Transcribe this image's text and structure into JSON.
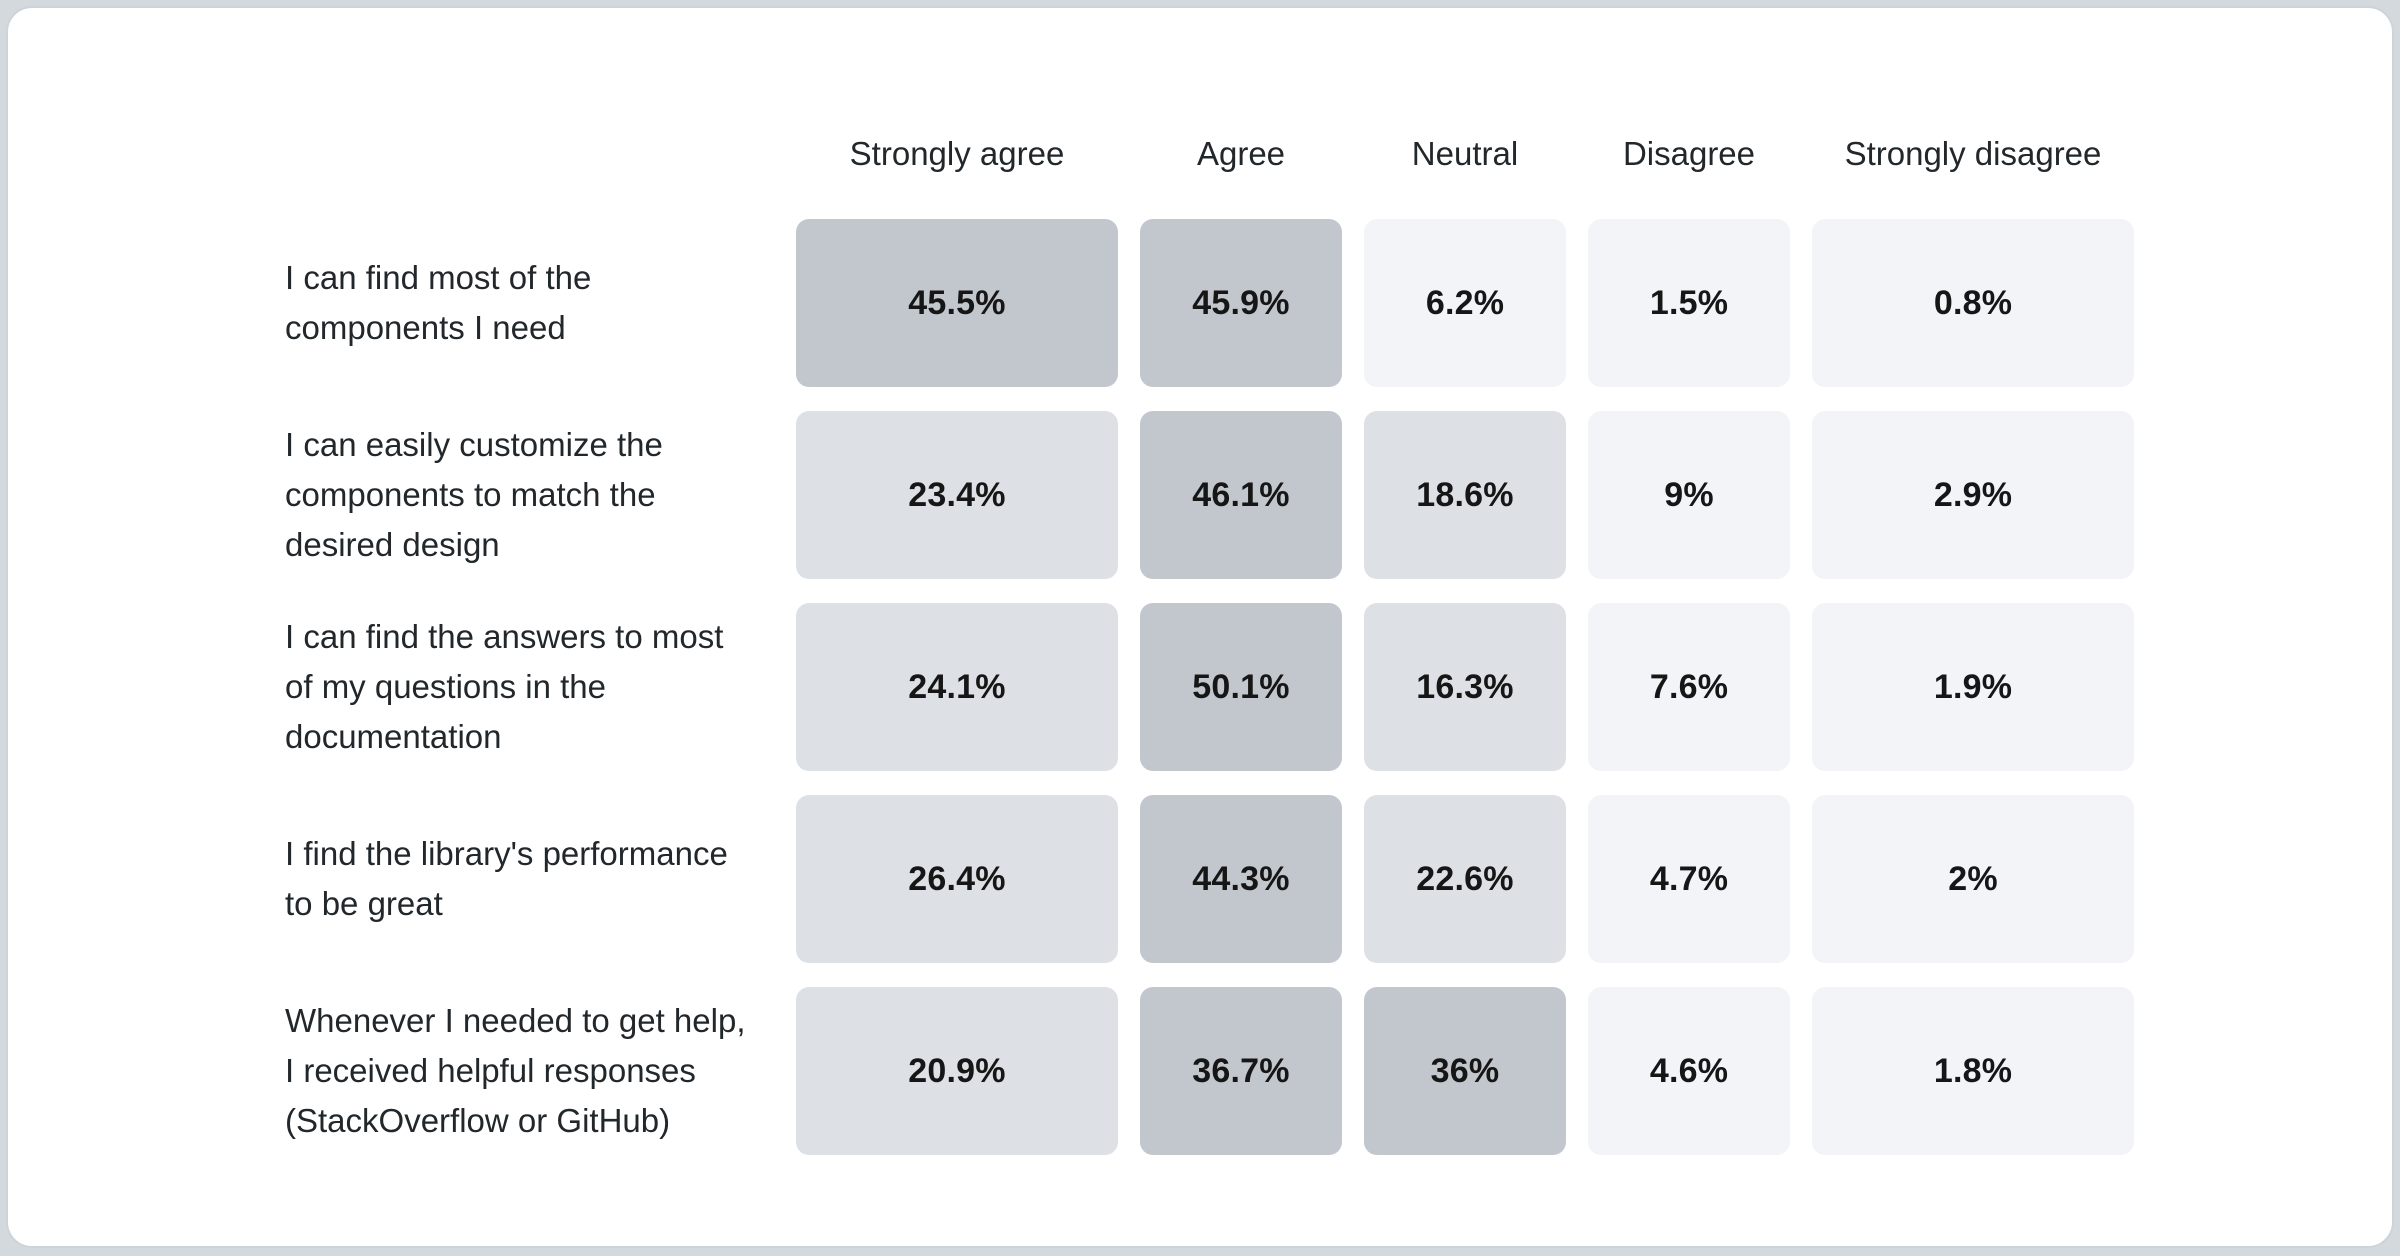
{
  "page": {
    "backdrop_color": "#d4d9dd",
    "card_background": "#ffffff",
    "card_border_color": "#ccd3d9"
  },
  "chart_data": {
    "type": "heatmap",
    "title": "",
    "columns": [
      "Strongly agree",
      "Agree",
      "Neutral",
      "Disagree",
      "Strongly disagree"
    ],
    "rows": [
      {
        "label": "I can find most of the components I need",
        "values": [
          45.5,
          45.9,
          6.2,
          1.5,
          0.8
        ],
        "display": [
          "45.5%",
          "45.9%",
          "6.2%",
          "1.5%",
          "0.8%"
        ]
      },
      {
        "label": "I can easily customize the components to match the desired design",
        "values": [
          23.4,
          46.1,
          18.6,
          9,
          2.9
        ],
        "display": [
          "23.4%",
          "46.1%",
          "18.6%",
          "9%",
          "2.9%"
        ]
      },
      {
        "label": "I can find the answers to most of my questions in the documentation",
        "values": [
          24.1,
          50.1,
          16.3,
          7.6,
          1.9
        ],
        "display": [
          "24.1%",
          "50.1%",
          "16.3%",
          "7.6%",
          "1.9%"
        ]
      },
      {
        "label": "I find the library's performance to be great",
        "values": [
          26.4,
          44.3,
          22.6,
          4.7,
          2
        ],
        "display": [
          "26.4%",
          "44.3%",
          "22.6%",
          "4.7%",
          "2%"
        ]
      },
      {
        "label": "Whenever I needed to get help, I received helpful responses (StackOverflow or GitHub)",
        "values": [
          20.9,
          36.7,
          36,
          4.6,
          1.8
        ],
        "display": [
          "20.9%",
          "36.7%",
          "36%",
          "4.6%",
          "1.8%"
        ]
      }
    ],
    "color_scale": {
      "dark": "#c1c7cd",
      "mid": "#dde1e6",
      "light": "#f2f4f8"
    },
    "thresholds": {
      "dark_min": 30,
      "mid_min": 10
    },
    "value_text_color": "#161616",
    "label_text_color": "#21272a",
    "legend": "none",
    "grid": "off"
  }
}
